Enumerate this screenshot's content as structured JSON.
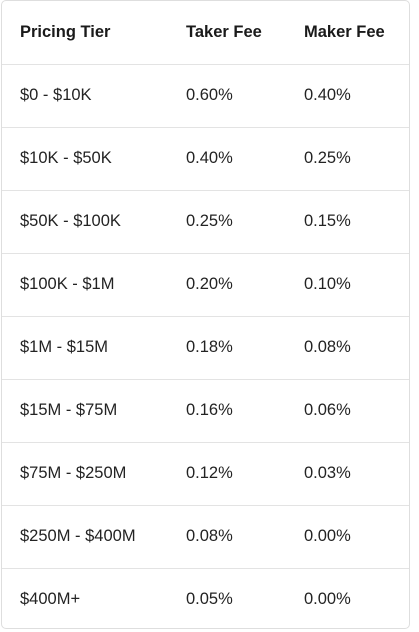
{
  "table": {
    "headers": [
      "Pricing Tier",
      "Taker Fee",
      "Maker Fee"
    ],
    "rows": [
      [
        "$0 - $10K",
        "0.60%",
        "0.40%"
      ],
      [
        "$10K - $50K",
        "0.40%",
        "0.25%"
      ],
      [
        "$50K - $100K",
        "0.25%",
        "0.15%"
      ],
      [
        "$100K - $1M",
        "0.20%",
        "0.10%"
      ],
      [
        "$1M - $15M",
        "0.18%",
        "0.08%"
      ],
      [
        "$15M - $75M",
        "0.16%",
        "0.06%"
      ],
      [
        "$75M - $250M",
        "0.12%",
        "0.03%"
      ],
      [
        "$250M - $400M",
        "0.08%",
        "0.00%"
      ],
      [
        "$400M+",
        "0.05%",
        "0.00%"
      ]
    ]
  }
}
